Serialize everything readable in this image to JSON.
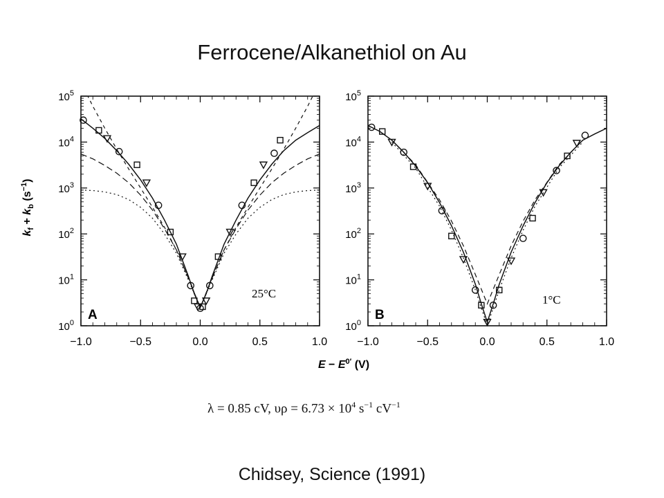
{
  "slide": {
    "title": "Ferrocene/Alkanethiol on Au",
    "citation": "Chidsey, Science (1991)",
    "equation": {
      "lambda_part": "λ = 0.85 cV, υρ",
      "rhs_part": "= 6.73 × 10",
      "exp1": "4",
      "unit_part": " s",
      "exp2": "−1",
      "unit2": " cV",
      "exp3": "−1"
    }
  },
  "chart_data": [
    {
      "type": "scatter",
      "panel_label": "A",
      "annotation": "25°C",
      "ylabel": "k_f + k_b (s^-1)",
      "xlabel": "E − E⁰′ (V)",
      "xlim": [
        -1.0,
        1.0
      ],
      "ylim_log10": [
        0,
        5
      ],
      "y_scale": "log",
      "x_ticks": [
        "−1.0",
        "−0.5",
        "0.0",
        "0.5",
        "1.0"
      ],
      "y_ticks": [
        "10⁰",
        "10¹",
        "10²",
        "10³",
        "10⁴",
        "10⁵"
      ],
      "series": [
        {
          "marker": "mixed",
          "points": [
            [
              -0.98,
              30000
            ],
            [
              -0.85,
              18000
            ],
            [
              -0.78,
              12000
            ],
            [
              -0.68,
              6200
            ],
            [
              -0.53,
              3200
            ],
            [
              -0.45,
              1300
            ],
            [
              -0.35,
              420
            ],
            [
              -0.25,
              110
            ],
            [
              -0.15,
              32
            ],
            [
              -0.08,
              7.5
            ],
            [
              -0.05,
              3.5
            ],
            [
              -0.02,
              2.6
            ],
            [
              0.0,
              2.4
            ],
            [
              0.02,
              2.6
            ],
            [
              0.05,
              3.5
            ],
            [
              0.08,
              7.5
            ],
            [
              0.15,
              32
            ],
            [
              0.25,
              110
            ],
            [
              0.35,
              420
            ],
            [
              0.45,
              1300
            ],
            [
              0.53,
              3200
            ],
            [
              0.62,
              5700
            ],
            [
              0.67,
              11000
            ]
          ]
        }
      ],
      "curves": [
        {
          "style": "solid",
          "points": [
            [
              -1.0,
              32000
            ],
            [
              -0.9,
              20000
            ],
            [
              -0.8,
              12000
            ],
            [
              -0.7,
              6500
            ],
            [
              -0.6,
              3300
            ],
            [
              -0.5,
              1500
            ],
            [
              -0.4,
              600
            ],
            [
              -0.3,
              200
            ],
            [
              -0.2,
              60
            ],
            [
              -0.1,
              12
            ],
            [
              -0.05,
              5
            ],
            [
              0.0,
              2.5
            ],
            [
              0.05,
              5
            ],
            [
              0.1,
              12
            ],
            [
              0.2,
              60
            ],
            [
              0.3,
              200
            ],
            [
              0.4,
              600
            ],
            [
              0.5,
              1500
            ],
            [
              0.6,
              3300
            ],
            [
              0.7,
              6500
            ],
            [
              0.8,
              11000
            ],
            [
              0.9,
              16000
            ],
            [
              1.0,
              23000
            ]
          ]
        },
        {
          "style": "dashed-upper",
          "points": [
            [
              -1.0,
              200000
            ],
            [
              -0.9,
              60000
            ],
            [
              -0.8,
              20000
            ],
            [
              -0.7,
              7000
            ],
            [
              -0.6,
              2600
            ],
            [
              -0.5,
              1000
            ],
            [
              -0.4,
              380
            ],
            [
              -0.3,
              140
            ],
            [
              -0.2,
              45
            ],
            [
              -0.1,
              11
            ],
            [
              0.0,
              2.5
            ],
            [
              0.1,
              11
            ],
            [
              0.2,
              45
            ],
            [
              0.3,
              140
            ],
            [
              0.4,
              380
            ],
            [
              0.5,
              1000
            ],
            [
              0.6,
              2600
            ],
            [
              0.7,
              7000
            ],
            [
              0.8,
              20000
            ],
            [
              0.9,
              60000
            ],
            [
              1.0,
              200000
            ]
          ]
        },
        {
          "style": "dashed-lower",
          "points": [
            [
              -1.0,
              5500
            ],
            [
              -0.9,
              4300
            ],
            [
              -0.8,
              3100
            ],
            [
              -0.7,
              2100
            ],
            [
              -0.6,
              1300
            ],
            [
              -0.5,
              700
            ],
            [
              -0.4,
              330
            ],
            [
              -0.3,
              130
            ],
            [
              -0.2,
              45
            ],
            [
              -0.1,
              11
            ],
            [
              0.0,
              2.5
            ],
            [
              0.1,
              11
            ],
            [
              0.2,
              45
            ],
            [
              0.3,
              130
            ],
            [
              0.4,
              330
            ],
            [
              0.5,
              700
            ],
            [
              0.6,
              1300
            ],
            [
              0.7,
              2100
            ],
            [
              0.8,
              3100
            ],
            [
              0.9,
              4300
            ],
            [
              1.0,
              5500
            ]
          ]
        },
        {
          "style": "dotted",
          "points": [
            [
              -1.0,
              900
            ],
            [
              -0.9,
              880
            ],
            [
              -0.8,
              820
            ],
            [
              -0.7,
              720
            ],
            [
              -0.6,
              560
            ],
            [
              -0.5,
              380
            ],
            [
              -0.4,
              220
            ],
            [
              -0.3,
              100
            ],
            [
              -0.2,
              38
            ],
            [
              -0.1,
              10
            ],
            [
              0.0,
              2.5
            ],
            [
              0.1,
              10
            ],
            [
              0.2,
              38
            ],
            [
              0.3,
              100
            ],
            [
              0.4,
              220
            ],
            [
              0.5,
              380
            ],
            [
              0.6,
              560
            ],
            [
              0.7,
              720
            ],
            [
              0.8,
              820
            ],
            [
              0.9,
              880
            ],
            [
              1.0,
              900
            ]
          ]
        }
      ]
    },
    {
      "type": "scatter",
      "panel_label": "B",
      "annotation": "1°C",
      "xlabel": "E − E⁰′ (V)",
      "xlim": [
        -1.0,
        1.0
      ],
      "ylim_log10": [
        0,
        5
      ],
      "y_scale": "log",
      "x_ticks": [
        "−1.0",
        "−0.5",
        "0.0",
        "0.5",
        "1.0"
      ],
      "y_ticks": [
        "10⁰",
        "10¹",
        "10²",
        "10³",
        "10⁴",
        "10⁵"
      ],
      "series": [
        {
          "marker": "mixed",
          "points": [
            [
              -0.97,
              21000
            ],
            [
              -0.88,
              17000
            ],
            [
              -0.8,
              10000
            ],
            [
              -0.7,
              6000
            ],
            [
              -0.62,
              2900
            ],
            [
              -0.5,
              1100
            ],
            [
              -0.38,
              320
            ],
            [
              -0.3,
              90
            ],
            [
              -0.2,
              28
            ],
            [
              -0.1,
              6
            ],
            [
              -0.05,
              2.8
            ],
            [
              0.0,
              1.2
            ],
            [
              0.05,
              2.8
            ],
            [
              0.1,
              6
            ],
            [
              0.2,
              26
            ],
            [
              0.3,
              80
            ],
            [
              0.38,
              220
            ],
            [
              0.47,
              800
            ],
            [
              0.58,
              2400
            ],
            [
              0.67,
              5000
            ],
            [
              0.75,
              9500
            ],
            [
              0.82,
              14000
            ]
          ]
        }
      ],
      "curves": [
        {
          "style": "solid",
          "points": [
            [
              -1.0,
              23000
            ],
            [
              -0.9,
              17000
            ],
            [
              -0.8,
              11000
            ],
            [
              -0.7,
              6000
            ],
            [
              -0.6,
              3000
            ],
            [
              -0.5,
              1300
            ],
            [
              -0.4,
              480
            ],
            [
              -0.3,
              150
            ],
            [
              -0.2,
              40
            ],
            [
              -0.1,
              8
            ],
            [
              -0.05,
              3
            ],
            [
              0.0,
              1.2
            ],
            [
              0.05,
              3
            ],
            [
              0.1,
              8
            ],
            [
              0.2,
              40
            ],
            [
              0.3,
              150
            ],
            [
              0.4,
              480
            ],
            [
              0.5,
              1300
            ],
            [
              0.6,
              3000
            ],
            [
              0.7,
              6000
            ],
            [
              0.8,
              11000
            ],
            [
              0.9,
              15000
            ],
            [
              1.0,
              20000
            ]
          ]
        },
        {
          "style": "dashed",
          "points": [
            [
              -0.8,
              11000
            ],
            [
              -0.6,
              3200
            ],
            [
              -0.4,
              550
            ],
            [
              -0.3,
              190
            ],
            [
              -0.2,
              55
            ],
            [
              -0.1,
              13
            ],
            [
              0.0,
              3
            ],
            [
              0.1,
              13
            ],
            [
              0.2,
              55
            ],
            [
              0.3,
              190
            ],
            [
              0.4,
              550
            ],
            [
              0.6,
              3200
            ],
            [
              0.8,
              11000
            ]
          ]
        },
        {
          "style": "dotted",
          "points": [
            [
              -0.8,
              10000
            ],
            [
              -0.6,
              2700
            ],
            [
              -0.4,
              400
            ],
            [
              -0.3,
              120
            ],
            [
              -0.2,
              30
            ],
            [
              -0.1,
              6
            ],
            [
              0.0,
              1.0
            ],
            [
              0.1,
              6
            ],
            [
              0.2,
              30
            ],
            [
              0.3,
              120
            ],
            [
              0.4,
              400
            ],
            [
              0.6,
              2700
            ],
            [
              0.8,
              10000
            ]
          ]
        }
      ]
    }
  ]
}
